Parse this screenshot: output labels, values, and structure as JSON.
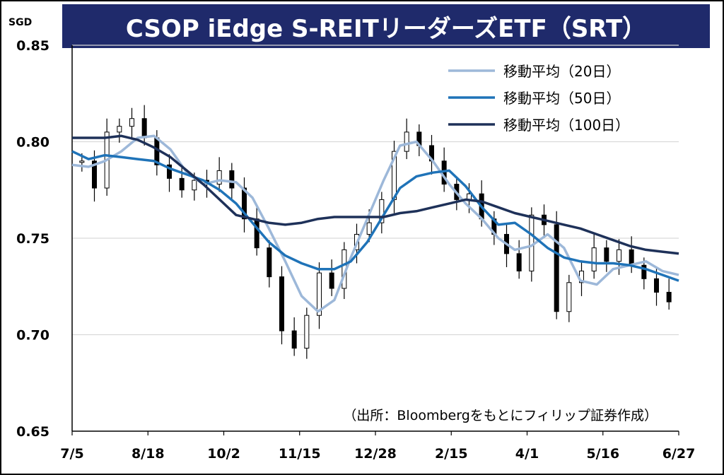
{
  "chart_data": {
    "type": "line",
    "title": "CSOP iEdge S-REITリーダーズETF（SRT）",
    "ylabel": "SGD",
    "ylim": [
      0.65,
      0.85
    ],
    "yticks": [
      "0.85",
      "0.80",
      "0.75",
      "0.70",
      "0.65"
    ],
    "yticks_values": [
      0.85,
      0.8,
      0.75,
      0.7,
      0.65
    ],
    "xticks": [
      "7/5",
      "8/18",
      "10/2",
      "11/15",
      "12/28",
      "2/15",
      "4/1",
      "5/16",
      "6/27"
    ],
    "grid": true,
    "legend_position": "top-right",
    "source_note": "（出所：Bloombergをもとにフィリップ証券作成）",
    "series": [
      {
        "name": "移動平均（20日）",
        "color": "#9db8d9",
        "values": [
          0.788,
          0.787,
          0.79,
          0.795,
          0.802,
          0.803,
          0.796,
          0.784,
          0.778,
          0.78,
          0.779,
          0.771,
          0.755,
          0.738,
          0.72,
          0.712,
          0.718,
          0.74,
          0.76,
          0.78,
          0.798,
          0.8,
          0.79,
          0.778,
          0.768,
          0.76,
          0.75,
          0.744,
          0.746,
          0.752,
          0.745,
          0.728,
          0.726,
          0.734,
          0.736,
          0.738,
          0.733,
          0.731
        ]
      },
      {
        "name": "移動平均（50日）",
        "color": "#1f73b8",
        "values": [
          0.795,
          0.791,
          0.793,
          0.792,
          0.791,
          0.79,
          0.786,
          0.783,
          0.78,
          0.775,
          0.768,
          0.758,
          0.748,
          0.741,
          0.737,
          0.734,
          0.734,
          0.738,
          0.748,
          0.762,
          0.776,
          0.782,
          0.784,
          0.785,
          0.777,
          0.766,
          0.757,
          0.758,
          0.752,
          0.745,
          0.74,
          0.738,
          0.737,
          0.737,
          0.736,
          0.734,
          0.731,
          0.728
        ]
      },
      {
        "name": "移動平均（100日）",
        "color": "#1e3159",
        "values": [
          0.802,
          0.802,
          0.802,
          0.803,
          0.801,
          0.797,
          0.792,
          0.785,
          0.778,
          0.77,
          0.762,
          0.76,
          0.758,
          0.757,
          0.758,
          0.76,
          0.761,
          0.761,
          0.761,
          0.761,
          0.763,
          0.764,
          0.766,
          0.768,
          0.77,
          0.769,
          0.766,
          0.763,
          0.761,
          0.759,
          0.757,
          0.755,
          0.752,
          0.749,
          0.746,
          0.744,
          0.743,
          0.742
        ]
      },
      {
        "name": "",
        "type": "candlestick",
        "color": "#000000",
        "values": [
          0.79,
          0.776,
          0.805,
          0.808,
          0.812,
          0.802,
          0.788,
          0.781,
          0.775,
          0.78,
          0.778,
          0.785,
          0.776,
          0.76,
          0.745,
          0.73,
          0.702,
          0.693,
          0.71,
          0.732,
          0.724,
          0.744,
          0.752,
          0.758,
          0.77,
          0.795,
          0.805,
          0.798,
          0.79,
          0.778,
          0.77,
          0.773,
          0.76,
          0.752,
          0.742,
          0.733,
          0.762,
          0.757,
          0.712,
          0.727,
          0.733,
          0.745,
          0.738,
          0.744,
          0.736,
          0.729,
          0.722,
          0.717
        ]
      }
    ]
  }
}
